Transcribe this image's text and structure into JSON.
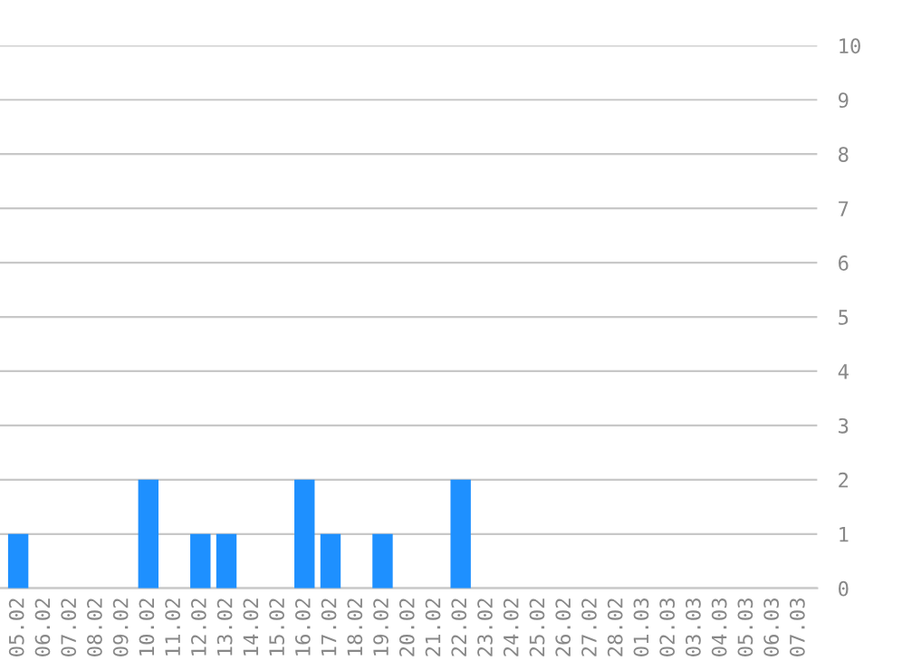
{
  "chart_data": {
    "type": "bar",
    "categories": [
      "05.02",
      "06.02",
      "07.02",
      "08.02",
      "09.02",
      "10.02",
      "11.02",
      "12.02",
      "13.02",
      "14.02",
      "15.02",
      "16.02",
      "17.02",
      "18.02",
      "19.02",
      "20.02",
      "21.02",
      "22.02",
      "23.02",
      "24.02",
      "25.02",
      "26.02",
      "27.02",
      "28.02",
      "01.03",
      "02.03",
      "03.03",
      "04.03",
      "05.03",
      "06.03",
      "07.03"
    ],
    "values": [
      1,
      0,
      0,
      0,
      0,
      2,
      0,
      1,
      1,
      0,
      0,
      2,
      1,
      0,
      1,
      0,
      0,
      2,
      0,
      0,
      0,
      0,
      0,
      0,
      0,
      0,
      0,
      0,
      0,
      0,
      0
    ],
    "color": "#1e90ff",
    "ylim": [
      0,
      10
    ],
    "yticks": [
      0,
      1,
      2,
      3,
      4,
      5,
      6,
      7,
      8,
      9,
      10
    ],
    "grid": "y"
  }
}
